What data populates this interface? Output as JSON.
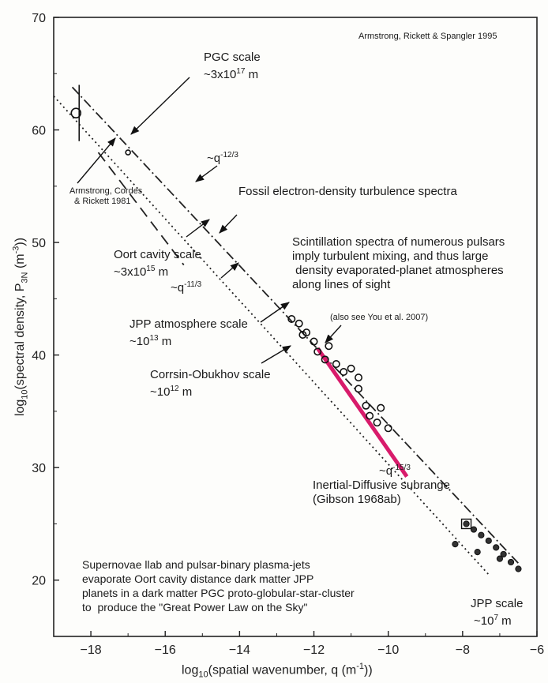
{
  "chart_data": {
    "type": "scatter",
    "xlabel": "log10(spatial wavenumber, q (m^-1))",
    "ylabel": "log10(spectral density, P3N (m^-3))",
    "xlim": [
      -19,
      -6
    ],
    "ylim": [
      15,
      70
    ],
    "xticks": [
      "-18",
      "-16",
      "-14",
      "-12",
      "-10",
      "-8",
      "-6"
    ],
    "yticks": [
      "20",
      "30",
      "40",
      "50",
      "60",
      "70"
    ],
    "grid": false,
    "lines": [
      {
        "name": "dash-dot",
        "style": "dashdot",
        "points": [
          [
            -18.5,
            63.8
          ],
          [
            -6.5,
            21.5
          ]
        ]
      },
      {
        "name": "dotted",
        "style": "dotted",
        "points": [
          [
            -19.0,
            63.0
          ],
          [
            -7.3,
            20.5
          ]
        ]
      },
      {
        "name": "dashed",
        "style": "dashed",
        "points": [
          [
            -17.8,
            58.0
          ],
          [
            -15.5,
            48.0
          ]
        ]
      },
      {
        "name": "magenta",
        "style": "solid",
        "color": "#d81b6b",
        "points": [
          [
            -11.9,
            40.6
          ],
          [
            -9.5,
            29.2
          ]
        ]
      }
    ],
    "points_pulsar": [
      [
        -12.6,
        43.2
      ],
      [
        -12.4,
        42.8
      ],
      [
        -12.2,
        42.0
      ],
      [
        -12.0,
        41.2
      ],
      [
        -11.9,
        40.3
      ],
      [
        -11.6,
        40.8
      ],
      [
        -11.4,
        39.2
      ],
      [
        -11.2,
        38.5
      ],
      [
        -11.0,
        38.8
      ],
      [
        -10.8,
        37.0
      ],
      [
        -10.6,
        35.5
      ],
      [
        -10.5,
        34.6
      ],
      [
        -10.3,
        34.0
      ],
      [
        -10.2,
        35.3
      ],
      [
        -10.0,
        33.5
      ],
      [
        -10.8,
        38.0
      ],
      [
        -12.3,
        41.8
      ],
      [
        -11.7,
        39.6
      ]
    ],
    "points_left": [
      [
        -18.4,
        61.5
      ],
      [
        -17.0,
        58.0
      ]
    ],
    "points_right": [
      [
        -7.9,
        25.0
      ],
      [
        -7.7,
        24.5
      ],
      [
        -7.5,
        24.0
      ],
      [
        -7.3,
        23.5
      ],
      [
        -7.1,
        22.9
      ],
      [
        -6.9,
        22.3
      ],
      [
        -6.7,
        21.6
      ],
      [
        -6.5,
        21.0
      ],
      [
        -7.6,
        22.5
      ],
      [
        -8.2,
        23.2
      ],
      [
        -7.0,
        21.9
      ]
    ]
  },
  "annotations": {
    "credit": "Armstrong, Rickett & Spangler 1995",
    "pgc_title": "PGC scale",
    "pgc_value": "~3x10",
    "pgc_exp": "17",
    "pgc_unit": " m",
    "armstrong1": "Armstrong, Cordes",
    "armstrong2": "& Rickett 1981",
    "q12_base": "~q",
    "q12_exp": "-12/3",
    "fossil": "Fossil electron-density turbulence spectra",
    "scint1": "Scintillation spectra of numerous pulsars",
    "scint2": "imply turbulent mixing, and thus large",
    "scint3": " density evaporated-planet atmospheres",
    "scint4": "along lines of sight",
    "oort_title": "Oort cavity scale",
    "oort_value": "~3x10",
    "oort_exp": "15",
    "oort_unit": " m",
    "q11_base": "~q",
    "q11_exp": "-11/3",
    "you": "(also see You et al. 2007)",
    "jpp_atm_title": "JPP atmosphere scale",
    "jpp_atm_value": "~10",
    "jpp_atm_exp": "13",
    "jpp_atm_unit": " m",
    "corrsin_title": "Corrsin-Obukhov scale",
    "corrsin_value": "~10",
    "corrsin_exp": "12",
    "corrsin_unit": " m",
    "q15_base": "~q",
    "q15_exp": "-15/3",
    "inertial1": "Inertial-Diffusive subrange",
    "inertial2": "(Gibson 1968ab)",
    "super1": "Supernovae llab and pulsar-binary plasma-jets",
    "super2": "evaporate Oort cavity distance dark matter  JPP",
    "super3": "planets in a dark matter PGC proto-globular-star-cluster",
    "super4": "to  produce the \"Great Power Law on the Sky\"",
    "jpp_title": "JPP scale",
    "jpp_value": "~10",
    "jpp_exp": "7",
    "jpp_unit": " m"
  },
  "axis": {
    "x_pre": "log",
    "x_sub": "10",
    "x_mid": "(spatial wavenumber, q (m",
    "x_sup": "-1",
    "x_post": "))",
    "y_pre": "log",
    "y_sub": "10",
    "y_mid": "(spectral density, P",
    "y_sub2": "3N",
    "y_mid2": " (m",
    "y_sup": "-3",
    "y_post": "))"
  }
}
